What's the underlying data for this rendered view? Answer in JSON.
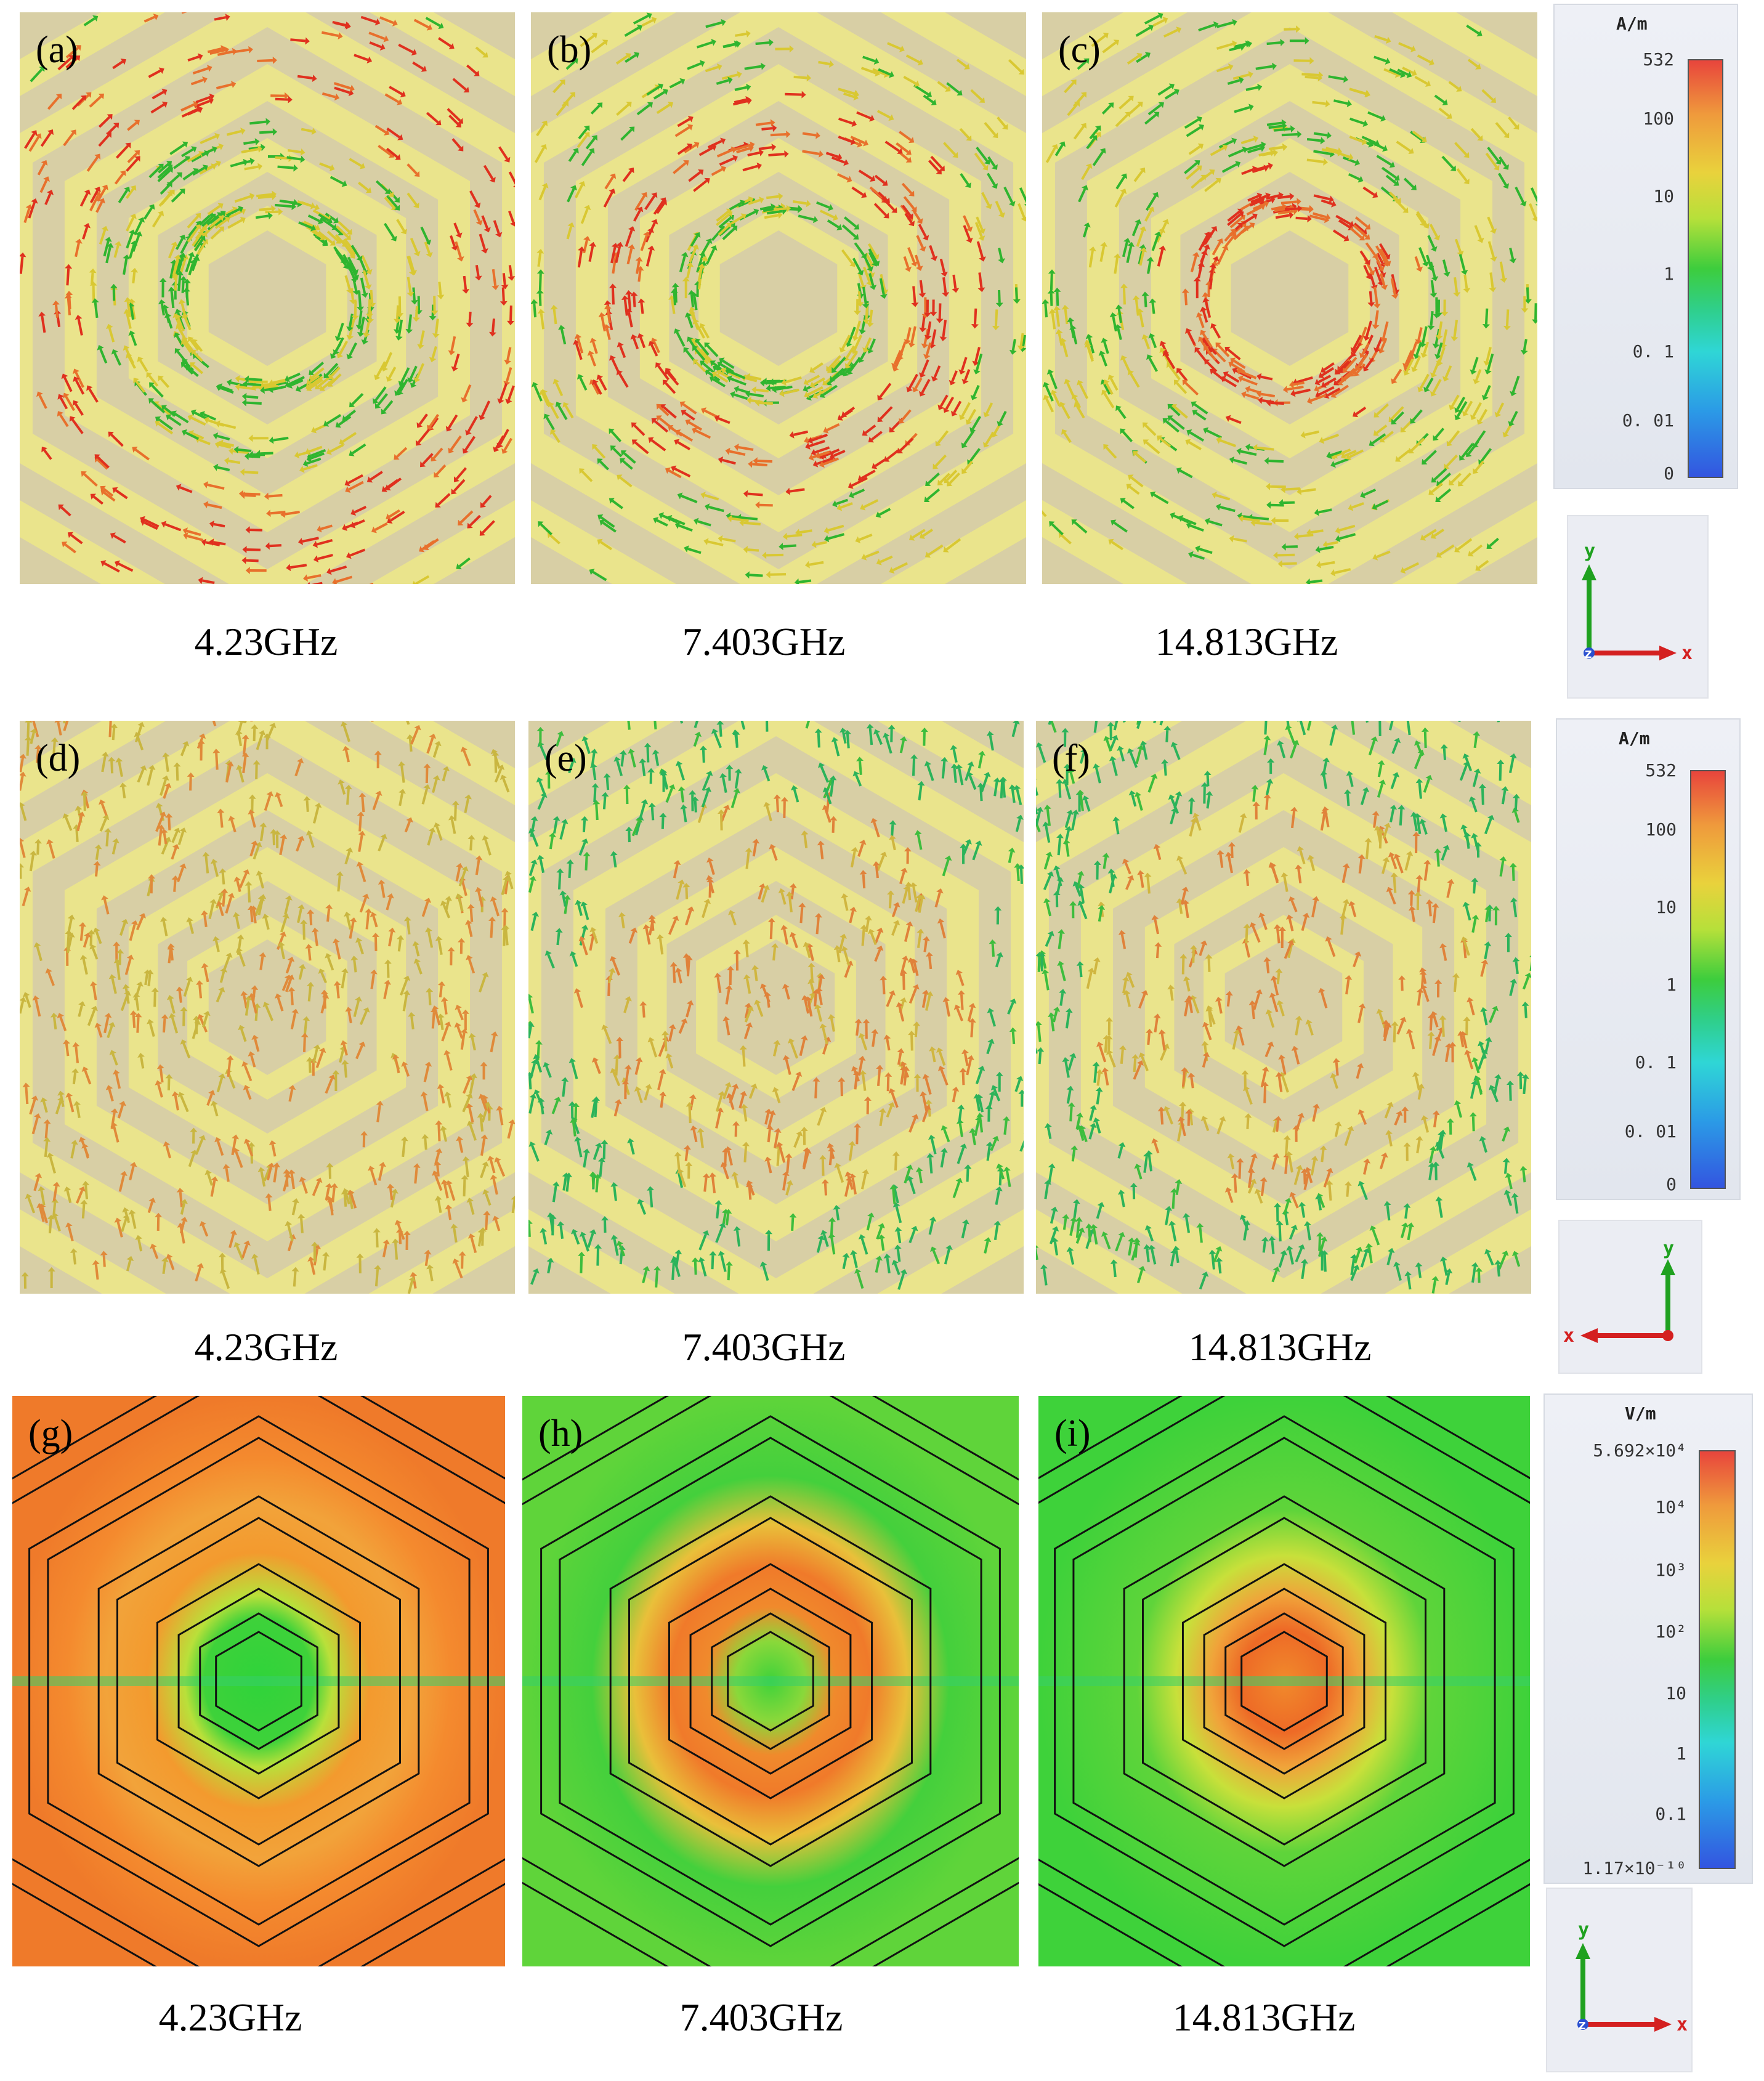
{
  "rows": [
    {
      "panels": [
        {
          "label": "(a)",
          "freq": "4.23GHz"
        },
        {
          "label": "(b)",
          "freq": "7.403GHz"
        },
        {
          "label": "(c)",
          "freq": "14.813GHz"
        }
      ],
      "legend": {
        "unit": "A/m",
        "ticks": [
          "532",
          "100",
          "10",
          "1",
          "0. 1",
          "0. 01",
          "0"
        ]
      }
    },
    {
      "panels": [
        {
          "label": "(d)",
          "freq": "4.23GHz"
        },
        {
          "label": "(e)",
          "freq": "7.403GHz"
        },
        {
          "label": "(f)",
          "freq": "14.813GHz"
        }
      ],
      "legend": {
        "unit": "A/m",
        "ticks": [
          "532",
          "100",
          "10",
          "1",
          "0. 1",
          "0. 01",
          "0"
        ]
      }
    },
    {
      "panels": [
        {
          "label": "(g)",
          "freq": "4.23GHz"
        },
        {
          "label": "(h)",
          "freq": "7.403GHz"
        },
        {
          "label": "(i)",
          "freq": "14.813GHz"
        }
      ],
      "legend": {
        "unit": "V/m",
        "ticks": [
          "5.692×10⁴",
          "10⁴",
          "10³",
          "10²",
          "10",
          "1",
          "0.1",
          "1.17×10⁻¹⁰"
        ]
      }
    }
  ],
  "axes": [
    {
      "y": "y",
      "x": "x",
      "z": "z"
    },
    {
      "y": "y",
      "x": "x"
    },
    {
      "y": "y",
      "x": "x",
      "z": "z"
    }
  ],
  "colors": {
    "substrate": "#d8cfa5",
    "metal": "#ece58a",
    "arrow_high": "#e0301e",
    "arrow_mid": "#d9c832",
    "arrow_low": "#2fb52f"
  }
}
